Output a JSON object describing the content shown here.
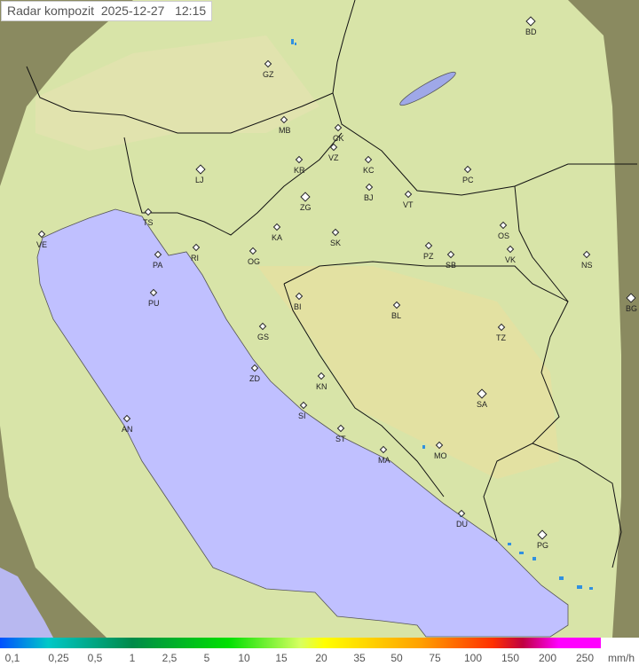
{
  "title": "Radar kompozit  2025-12-27   12:15",
  "colors": {
    "sea": "#c0c0ff",
    "land": "#d8e4a8",
    "outside": "#8a8a60",
    "border": "#111111"
  },
  "cities": [
    {
      "code": "BD",
      "big": true
    },
    {
      "code": "GZ"
    },
    {
      "code": "MB"
    },
    {
      "code": "CK"
    },
    {
      "code": "VZ"
    },
    {
      "code": "KR"
    },
    {
      "code": "KC"
    },
    {
      "code": "PC"
    },
    {
      "code": "LJ",
      "big": true
    },
    {
      "code": "TS"
    },
    {
      "code": "ZG",
      "big": true
    },
    {
      "code": "BJ"
    },
    {
      "code": "VT"
    },
    {
      "code": "VE"
    },
    {
      "code": "RI"
    },
    {
      "code": "KA"
    },
    {
      "code": "SK"
    },
    {
      "code": "OS"
    },
    {
      "code": "PA"
    },
    {
      "code": "OG"
    },
    {
      "code": "PZ"
    },
    {
      "code": "SB"
    },
    {
      "code": "VK"
    },
    {
      "code": "NS"
    },
    {
      "code": "PU"
    },
    {
      "code": "BI"
    },
    {
      "code": "BL"
    },
    {
      "code": "BG",
      "big": true
    },
    {
      "code": "GS"
    },
    {
      "code": "TZ"
    },
    {
      "code": "ZD"
    },
    {
      "code": "KN"
    },
    {
      "code": "SA",
      "big": true
    },
    {
      "code": "SI"
    },
    {
      "code": "AN"
    },
    {
      "code": "ST"
    },
    {
      "code": "MA"
    },
    {
      "code": "MO"
    },
    {
      "code": "DU"
    },
    {
      "code": "PG",
      "big": true
    }
  ],
  "legend": {
    "labels": [
      "0,1",
      "0,25",
      "0,5",
      "1",
      "2,5",
      "5",
      "10",
      "15",
      "20",
      "35",
      "50",
      "75",
      "100",
      "150",
      "200",
      "250"
    ],
    "unit": "mm/h"
  }
}
